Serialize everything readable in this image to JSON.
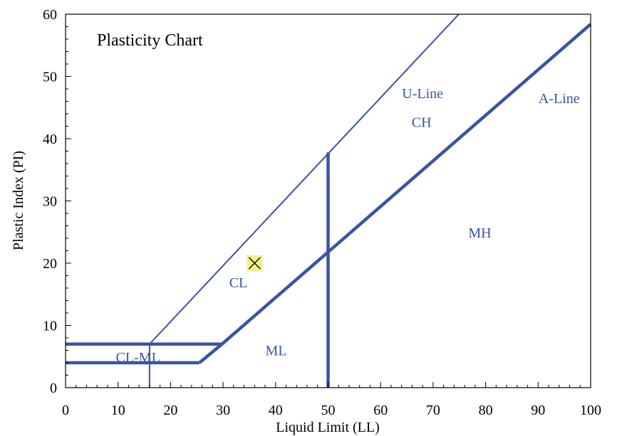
{
  "chart_data": {
    "type": "line",
    "title": "Plasticity Chart",
    "xlabel": "Liquid Limit (LL)",
    "ylabel": "Plastic Index (PI)",
    "xlim": [
      0,
      100
    ],
    "ylim": [
      0,
      60
    ],
    "x_ticks": [
      0,
      10,
      20,
      30,
      40,
      50,
      60,
      70,
      80,
      90,
      100
    ],
    "y_ticks": [
      0,
      10,
      20,
      30,
      40,
      50,
      60
    ],
    "grid": false,
    "colors": {
      "lines": "#3a53a4",
      "marker_fill": "#f5ee8a",
      "marker_stroke": "#000000"
    },
    "series": [
      {
        "name": "A-Line",
        "style": "thick",
        "x": [
          25.5,
          29.8,
          100
        ],
        "y": [
          4,
          7,
          58.4
        ]
      },
      {
        "name": "U-Line",
        "style": "thin",
        "x": [
          16,
          74.9
        ],
        "y": [
          7,
          60
        ]
      },
      {
        "style": "thick",
        "x": [
          0,
          25.5
        ],
        "y": [
          4,
          4
        ]
      },
      {
        "style": "thick",
        "x": [
          0,
          29.8
        ],
        "y": [
          7,
          7
        ]
      },
      {
        "style": "thick",
        "x": [
          50,
          50
        ],
        "y": [
          0,
          37.8
        ]
      },
      {
        "style": "thin",
        "x": [
          16,
          16
        ],
        "y": [
          0,
          7
        ]
      }
    ],
    "points": [
      {
        "x": 36,
        "y": 20,
        "marker": "x-box"
      }
    ],
    "annotations": [
      {
        "text": "U-Line",
        "x": 68,
        "y": 46.5
      },
      {
        "text": "A-Line",
        "x": 94,
        "y": 45.7
      },
      {
        "text": "CH",
        "x": 67.8,
        "y": 41.9
      },
      {
        "text": "MH",
        "x": 78.9,
        "y": 24.1
      },
      {
        "text": "CL",
        "x": 32.9,
        "y": 16.1
      },
      {
        "text": "ML",
        "x": 40.1,
        "y": 5.2
      },
      {
        "text": "CL-ML",
        "x": 13.8,
        "y": 4.1
      }
    ]
  }
}
